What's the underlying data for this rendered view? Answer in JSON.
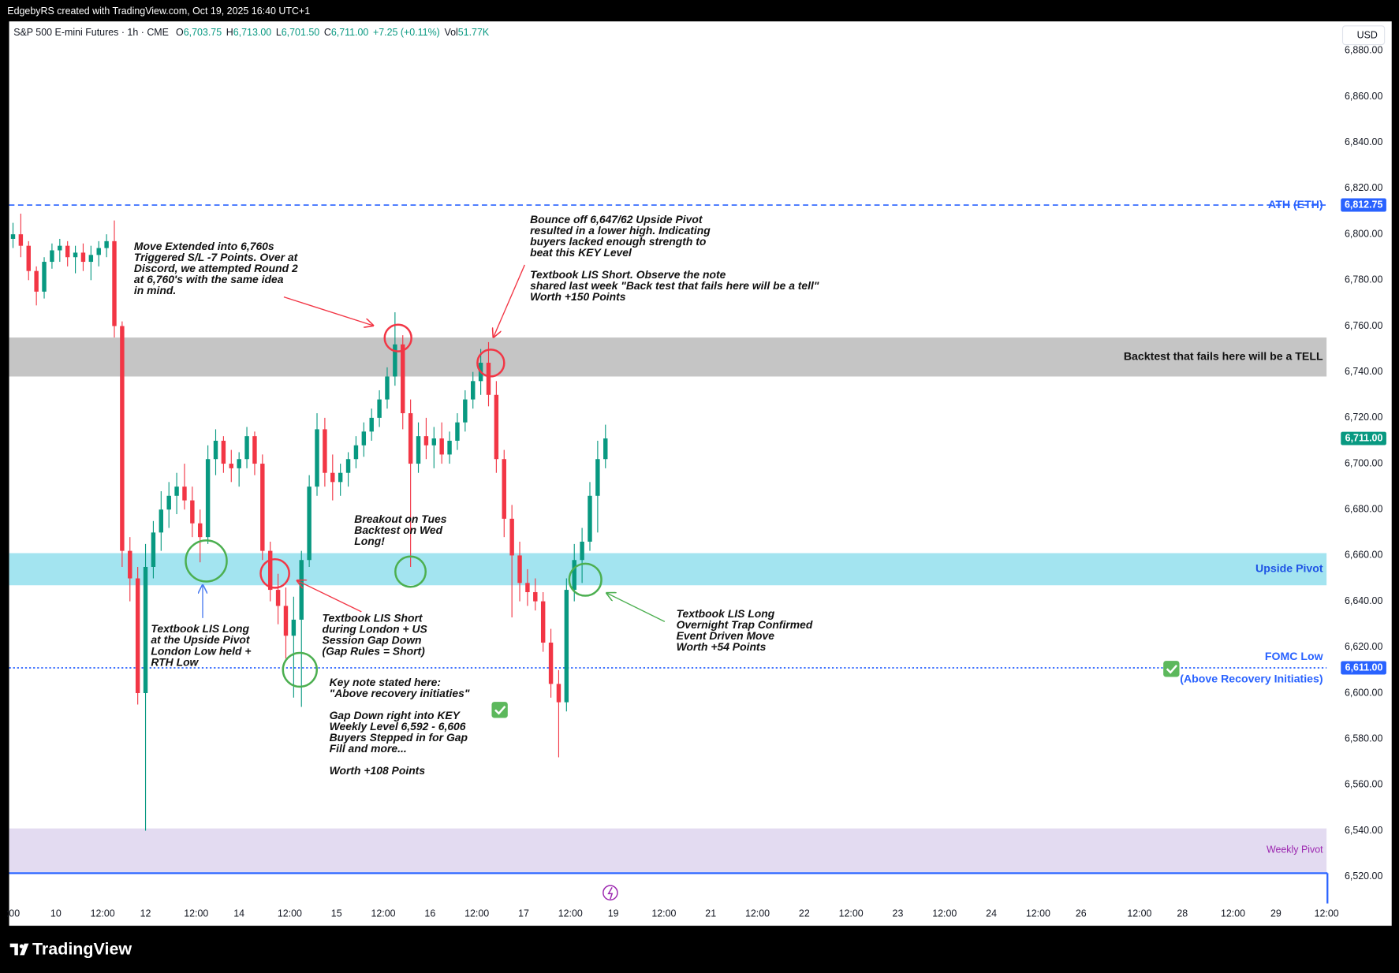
{
  "header": {
    "credit": "EdgebyRS created with TradingView.com, Oct 19, 2025 16:40 UTC+1",
    "symbol": "S&P 500 E-mini Futures · 1h · CME",
    "ohlc": [
      {
        "key": "O",
        "price": {
          "value": 6703.75,
          "label": "6,703.75"
        }
      },
      {
        "key": "H",
        "price": {
          "value": 6713,
          "label": "6,713.00"
        }
      },
      {
        "key": "L",
        "price": {
          "value": 6701.5,
          "label": "6,701.50"
        }
      },
      {
        "key": "C",
        "price": {
          "value": 6711,
          "label": "6,711.00"
        }
      }
    ],
    "change": "+7.25 (+0.11%)",
    "volume_key": "Vol",
    "volume": "51.77K",
    "currency": "USD"
  },
  "chart_data": {
    "type": "candlestick",
    "xlim": [
      0,
      338
    ],
    "ylim": [
      6508.3,
      6892.8
    ],
    "grid": false,
    "up_color": "#089981",
    "down_color": "#f23645",
    "yticks": [
      {
        "value": 6520,
        "label": "6,520.00"
      },
      {
        "value": 6540,
        "label": "6,540.00"
      },
      {
        "value": 6560,
        "label": "6,560.00"
      },
      {
        "value": 6580,
        "label": "6,580.00"
      },
      {
        "value": 6600,
        "label": "6,600.00"
      },
      {
        "value": 6620,
        "label": "6,620.00"
      },
      {
        "value": 6640,
        "label": "6,640.00"
      },
      {
        "value": 6660,
        "label": "6,660.00"
      },
      {
        "value": 6680,
        "label": "6,680.00"
      },
      {
        "value": 6700,
        "label": "6,700.00"
      },
      {
        "value": 6720,
        "label": "6,720.00"
      },
      {
        "value": 6740,
        "label": "6,740.00"
      },
      {
        "value": 6760,
        "label": "6,760.00"
      },
      {
        "value": 6780,
        "label": "6,780.00"
      },
      {
        "value": 6800,
        "label": "6,800.00"
      },
      {
        "value": 6820,
        "label": "6,820.00"
      },
      {
        "value": 6840,
        "label": "6,840.00"
      },
      {
        "value": 6860,
        "label": "6,860.00"
      },
      {
        "value": 6880,
        "label": "6,880.00"
      }
    ],
    "xticks": [
      {
        "value": 1,
        "label": ":00"
      },
      {
        "value": 12,
        "label": "10"
      },
      {
        "value": 24,
        "label": "12:00"
      },
      {
        "value": 35,
        "label": "12"
      },
      {
        "value": 48,
        "label": "12:00"
      },
      {
        "value": 59,
        "label": "14"
      },
      {
        "value": 72,
        "label": "12:00"
      },
      {
        "value": 84,
        "label": "15"
      },
      {
        "value": 96,
        "label": "12:00"
      },
      {
        "value": 108,
        "label": "16"
      },
      {
        "value": 120,
        "label": "12:00"
      },
      {
        "value": 132,
        "label": "17"
      },
      {
        "value": 144,
        "label": "12:00"
      },
      {
        "value": 155,
        "label": "19"
      },
      {
        "value": 168,
        "label": "12:00"
      },
      {
        "value": 180,
        "label": "21"
      },
      {
        "value": 192,
        "label": "12:00"
      },
      {
        "value": 204,
        "label": "22"
      },
      {
        "value": 216,
        "label": "12:00"
      },
      {
        "value": 228,
        "label": "23"
      },
      {
        "value": 240,
        "label": "12:00"
      },
      {
        "value": 252,
        "label": "24"
      },
      {
        "value": 264,
        "label": "12:00"
      },
      {
        "value": 275,
        "label": "26"
      },
      {
        "value": 290,
        "label": "12:00"
      },
      {
        "value": 301,
        "label": "28"
      },
      {
        "value": 314,
        "label": "12:00"
      },
      {
        "value": 325,
        "label": "29"
      },
      {
        "value": 338,
        "label": "12:00"
      }
    ],
    "candles": {
      "x": [
        1,
        3,
        5,
        7,
        9,
        11,
        13,
        15,
        17,
        19,
        21,
        23,
        25,
        27,
        29,
        31,
        33,
        35,
        37,
        39,
        41,
        43,
        45,
        47,
        49,
        51,
        53,
        55,
        57,
        59,
        61,
        63,
        65,
        67,
        69,
        71,
        73,
        75,
        77,
        79,
        81,
        83,
        85,
        87,
        89,
        91,
        93,
        95,
        97,
        99,
        101,
        103,
        105,
        107,
        109,
        111,
        113,
        115,
        117,
        119,
        121,
        123,
        125,
        127,
        129,
        131,
        133,
        135,
        137,
        139,
        141,
        143,
        145,
        147,
        149,
        151,
        153
      ],
      "open": [
        6798,
        6800,
        6795,
        6784,
        6775,
        6788,
        6793,
        6795,
        6790,
        6792,
        6788,
        6791,
        6794,
        6797,
        6760,
        6662,
        6650,
        6600,
        6655,
        6670,
        6680,
        6686,
        6690,
        6684,
        6674,
        6668,
        6702,
        6710,
        6700,
        6698,
        6702,
        6712,
        6700,
        6662,
        6645,
        6638,
        6625,
        6632,
        6658,
        6690,
        6715,
        6696,
        6692,
        6696,
        6702,
        6708,
        6714,
        6720,
        6728,
        6738,
        6752,
        6722,
        6700,
        6712,
        6708,
        6711,
        6704,
        6710,
        6718,
        6728,
        6736,
        6744,
        6730,
        6702,
        6676,
        6660,
        6648,
        6644,
        6640,
        6622,
        6604,
        6596,
        6645,
        6658,
        6666,
        6686,
        6702
      ],
      "high": [
        6805,
        6809,
        6797,
        6786,
        6790,
        6796,
        6798,
        6797,
        6795,
        6796,
        6795,
        6797,
        6800,
        6806,
        6762,
        6668,
        6655,
        6665,
        6675,
        6688,
        6692,
        6696,
        6700,
        6690,
        6680,
        6708,
        6715,
        6712,
        6706,
        6705,
        6716,
        6714,
        6704,
        6666,
        6652,
        6646,
        6642,
        6662,
        6695,
        6722,
        6720,
        6704,
        6700,
        6705,
        6712,
        6718,
        6724,
        6732,
        6742,
        6766,
        6756,
        6728,
        6718,
        6720,
        6716,
        6718,
        6714,
        6722,
        6732,
        6740,
        6750,
        6753,
        6736,
        6706,
        6682,
        6666,
        6654,
        6650,
        6644,
        6628,
        6610,
        6650,
        6665,
        6672,
        6692,
        6710,
        6717
      ],
      "low": [
        6794,
        6790,
        6780,
        6769,
        6772,
        6785,
        6788,
        6786,
        6783,
        6784,
        6780,
        6786,
        6790,
        6755,
        6655,
        6640,
        6595,
        6540,
        6650,
        6662,
        6672,
        6678,
        6680,
        6668,
        6657,
        6665,
        6695,
        6696,
        6692,
        6690,
        6698,
        6695,
        6658,
        6640,
        6630,
        6615,
        6598,
        6594,
        6655,
        6686,
        6690,
        6684,
        6686,
        6690,
        6698,
        6703,
        6710,
        6716,
        6724,
        6734,
        6715,
        6655,
        6696,
        6702,
        6698,
        6700,
        6700,
        6706,
        6714,
        6724,
        6730,
        6725,
        6696,
        6668,
        6633,
        6640,
        6638,
        6636,
        6618,
        6598,
        6572,
        6592,
        6640,
        6648,
        6662,
        6670,
        6698
      ],
      "close": [
        6800,
        6795,
        6784,
        6775,
        6788,
        6793,
        6795,
        6790,
        6792,
        6788,
        6791,
        6794,
        6797,
        6760,
        6662,
        6650,
        6600,
        6655,
        6670,
        6680,
        6686,
        6690,
        6684,
        6674,
        6668,
        6702,
        6710,
        6700,
        6698,
        6702,
        6712,
        6700,
        6662,
        6645,
        6638,
        6625,
        6632,
        6658,
        6690,
        6715,
        6696,
        6692,
        6696,
        6702,
        6708,
        6714,
        6720,
        6728,
        6738,
        6752,
        6722,
        6700,
        6712,
        6708,
        6711,
        6704,
        6710,
        6718,
        6728,
        6736,
        6744,
        6730,
        6702,
        6676,
        6660,
        6648,
        6644,
        6640,
        6622,
        6604,
        6596,
        6645,
        6658,
        6666,
        6686,
        6702,
        6711
      ]
    },
    "zones": [
      {
        "label": "Backtest that fails here will be a TELL",
        "from": 6738,
        "to": 6755,
        "color": "#c2c2c2",
        "label_color": "#111111"
      },
      {
        "label": "Upside Pivot",
        "from": 6647,
        "to": 6661,
        "color": "#9ee3ef",
        "label_color": "#1e53e5"
      },
      {
        "label": "Weekly Pivot",
        "from": 6522,
        "to": 6541,
        "color": "#e1d9f0",
        "label_color": "#9c27b0"
      }
    ],
    "levels": [
      {
        "name": "ATH (ETH)",
        "price": {
          "value": 6812.75,
          "label": "6,812.75"
        },
        "color": "#2962ff",
        "style": "dashed"
      },
      {
        "name": "FOMC Low",
        "note": "(Above Recovery Initiaties)",
        "price": {
          "value": 6611,
          "label": "6,611.00"
        },
        "color": "#2962ff",
        "style": "dotted"
      },
      {
        "price": 6521.5,
        "color": "#2962ff",
        "style": "solid"
      }
    ],
    "last_price": {
      "value": 6711,
      "label": "6,711.00"
    },
    "last_price_color": "#089981",
    "annotations": [
      [
        "Move Extended into 6,760s",
        "Triggered S/L -7 Points. Over at",
        "Discord, we attempted Round 2",
        "at 6,760's with the same idea",
        "in mind."
      ],
      [
        "Bounce off 6,647/62 Upside Pivot",
        "resulted in a lower high. Indicating",
        "buyers lacked enough strength to",
        "beat this KEY Level"
      ],
      [
        "Textbook LIS Short. Observe the note",
        "shared last week \"Back test that fails here will be a tell\"",
        "Worth +150 Points"
      ],
      [
        "Breakout on Tues",
        "Backtest on Wed",
        "Long!"
      ],
      [
        "Textbook LIS Long",
        "at the Upside Pivot",
        "London Low held +",
        "RTH Low"
      ],
      [
        "Textbook LIS Short",
        "during London + US",
        "Session Gap Down",
        "(Gap Rules = Short)"
      ],
      [
        "Key note stated here:",
        "\"Above recovery initiaties\""
      ],
      [
        "Gap Down right into KEY",
        "Weekly Level 6,592 - 6,606",
        "Buyers Stepped in for Gap",
        "Fill and more..."
      ],
      [
        "Worth +108 Points"
      ],
      [
        "Textbook LIS Long",
        "Overnight Trap Confirmed",
        "Event Driven Move",
        "Worth +54 Points"
      ]
    ]
  },
  "footer": {
    "logo": "TradingView"
  }
}
